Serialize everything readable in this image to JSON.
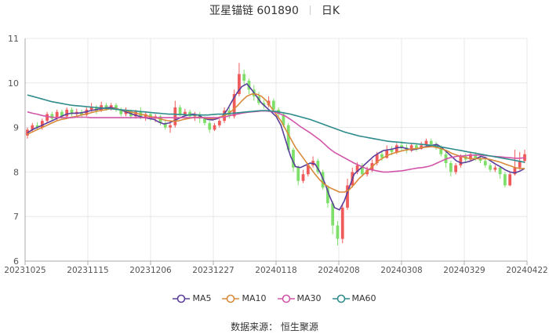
{
  "header": {
    "stock_name": "亚星锚链 601890",
    "period": "日K"
  },
  "source": "数据来源： 恒生聚源",
  "colors": {
    "up": "#f05a5a",
    "down": "#7ee06a",
    "MA5": "#5b3f9b",
    "MA10": "#d88a3a",
    "MA30": "#d255a8",
    "MA60": "#2f8c8c",
    "grid": "#e8e8e8",
    "axis": "#aaaaaa"
  },
  "chart_data": {
    "type": "candlestick",
    "title": "亚星锚链 601890 日K",
    "ylim": [
      6,
      11
    ],
    "yticks": [
      6,
      7,
      8,
      9,
      10,
      11
    ],
    "xticks": [
      "20231025",
      "20231115",
      "20231206",
      "20231227",
      "20240118",
      "20240208",
      "20240308",
      "20240329",
      "20240422"
    ],
    "legend_position": "bottom",
    "grid": true,
    "series": [
      {
        "name": "MA5",
        "values": [
          8.88,
          8.95,
          9.0,
          9.05,
          9.1,
          9.15,
          9.2,
          9.25,
          9.3,
          9.32,
          9.32,
          9.33,
          9.35,
          9.38,
          9.4,
          9.42,
          9.44,
          9.45,
          9.43,
          9.4,
          9.36,
          9.32,
          9.28,
          9.25,
          9.22,
          9.2,
          9.18,
          9.12,
          9.08,
          9.1,
          9.15,
          9.2,
          9.25,
          9.28,
          9.3,
          9.28,
          9.22,
          9.18,
          9.17,
          9.2,
          9.25,
          9.4,
          9.6,
          9.78,
          9.92,
          9.98,
          9.85,
          9.7,
          9.55,
          9.45,
          9.35,
          9.25,
          9.05,
          8.7,
          8.35,
          8.12,
          8.1,
          8.15,
          8.2,
          8.18,
          8.0,
          7.75,
          7.45,
          7.2,
          7.15,
          7.35,
          7.65,
          7.95,
          8.05,
          8.15,
          8.25,
          8.35,
          8.42,
          8.48,
          8.5,
          8.52,
          8.55,
          8.55,
          8.52,
          8.5,
          8.52,
          8.55,
          8.58,
          8.6,
          8.62,
          8.55,
          8.45,
          8.35,
          8.25,
          8.2,
          8.22,
          8.25,
          8.3,
          8.35,
          8.32,
          8.25,
          8.18,
          8.12,
          8.05,
          8.0,
          7.98,
          8.02,
          8.08
        ]
      },
      {
        "name": "MA10",
        "values": [
          8.85,
          8.9,
          8.95,
          9.0,
          9.05,
          9.1,
          9.15,
          9.18,
          9.2,
          9.23,
          9.25,
          9.28,
          9.3,
          9.33,
          9.36,
          9.38,
          9.4,
          9.42,
          9.42,
          9.4,
          9.38,
          9.35,
          9.33,
          9.3,
          9.28,
          9.25,
          9.23,
          9.2,
          9.17,
          9.15,
          9.14,
          9.15,
          9.18,
          9.2,
          9.22,
          9.23,
          9.22,
          9.2,
          9.2,
          9.22,
          9.25,
          9.3,
          9.38,
          9.48,
          9.6,
          9.7,
          9.75,
          9.75,
          9.7,
          9.6,
          9.45,
          9.3,
          9.15,
          8.95,
          8.75,
          8.55,
          8.4,
          8.25,
          8.1,
          7.95,
          7.82,
          7.72,
          7.65,
          7.6,
          7.55,
          7.55,
          7.6,
          7.72,
          7.85,
          7.95,
          8.05,
          8.15,
          8.25,
          8.32,
          8.38,
          8.42,
          8.45,
          8.48,
          8.5,
          8.52,
          8.53,
          8.55,
          8.56,
          8.57,
          8.55,
          8.52,
          8.48,
          8.42,
          8.38,
          8.35,
          8.32,
          8.3,
          8.3,
          8.3,
          8.3,
          8.28,
          8.25,
          8.22,
          8.18,
          8.14,
          8.1,
          8.08,
          8.08
        ]
      },
      {
        "name": "MA30",
        "values": [
          9.35,
          9.32,
          9.3,
          9.27,
          9.25,
          9.23,
          9.22,
          9.22,
          9.22,
          9.22,
          9.23,
          9.23,
          9.23,
          9.22,
          9.22,
          9.22,
          9.22,
          9.22,
          9.22,
          9.22,
          9.22,
          9.22,
          9.22,
          9.22,
          9.22,
          9.22,
          9.22,
          9.22,
          9.22,
          9.22,
          9.22,
          9.22,
          9.22,
          9.22,
          9.22,
          9.22,
          9.22,
          9.22,
          9.22,
          9.22,
          9.23,
          9.25,
          9.28,
          9.3,
          9.32,
          9.34,
          9.35,
          9.36,
          9.37,
          9.37,
          9.36,
          9.34,
          9.3,
          9.25,
          9.18,
          9.1,
          9.02,
          8.95,
          8.88,
          8.8,
          8.72,
          8.62,
          8.52,
          8.44,
          8.38,
          8.32,
          8.26,
          8.2,
          8.15,
          8.1,
          8.06,
          8.04,
          8.02,
          8.0,
          8.0,
          8.01,
          8.02,
          8.03,
          8.05,
          8.07,
          8.09,
          8.1,
          8.12,
          8.15,
          8.2,
          8.25,
          8.3,
          8.33,
          8.35,
          8.36,
          8.37,
          8.38,
          8.38,
          8.38,
          8.37,
          8.36,
          8.35,
          8.34,
          8.33,
          8.32,
          8.31,
          8.31,
          8.32
        ]
      },
      {
        "name": "MA60",
        "values": [
          9.73,
          9.7,
          9.67,
          9.64,
          9.61,
          9.58,
          9.56,
          9.54,
          9.52,
          9.5,
          9.49,
          9.48,
          9.47,
          9.46,
          9.45,
          9.44,
          9.43,
          9.42,
          9.41,
          9.4,
          9.39,
          9.38,
          9.37,
          9.36,
          9.35,
          9.34,
          9.33,
          9.32,
          9.31,
          9.3,
          9.3,
          9.29,
          9.29,
          9.28,
          9.28,
          9.28,
          9.28,
          9.28,
          9.29,
          9.3,
          9.3,
          9.31,
          9.32,
          9.33,
          9.34,
          9.35,
          9.36,
          9.37,
          9.38,
          9.38,
          9.37,
          9.36,
          9.34,
          9.32,
          9.3,
          9.27,
          9.24,
          9.21,
          9.18,
          9.14,
          9.1,
          9.06,
          9.02,
          8.98,
          8.94,
          8.9,
          8.87,
          8.84,
          8.81,
          8.79,
          8.77,
          8.75,
          8.73,
          8.71,
          8.69,
          8.68,
          8.67,
          8.66,
          8.65,
          8.64,
          8.63,
          8.62,
          8.61,
          8.6,
          8.58,
          8.56,
          8.54,
          8.52,
          8.5,
          8.48,
          8.46,
          8.44,
          8.42,
          8.4,
          8.38,
          8.36,
          8.34,
          8.32,
          8.3,
          8.28,
          8.26,
          8.24,
          8.22
        ]
      }
    ],
    "candles": [
      [
        8.82,
        8.95,
        9.0,
        8.75
      ],
      [
        8.95,
        9.05,
        9.1,
        8.9
      ],
      [
        9.05,
        9.0,
        9.12,
        8.95
      ],
      [
        9.0,
        9.15,
        9.2,
        8.95
      ],
      [
        9.15,
        9.3,
        9.35,
        9.1
      ],
      [
        9.3,
        9.2,
        9.35,
        9.15
      ],
      [
        9.2,
        9.35,
        9.4,
        9.15
      ],
      [
        9.35,
        9.25,
        9.4,
        9.2
      ],
      [
        9.25,
        9.4,
        9.45,
        9.2
      ],
      [
        9.4,
        9.3,
        9.45,
        9.25
      ],
      [
        9.3,
        9.35,
        9.42,
        9.25
      ],
      [
        9.35,
        9.28,
        9.4,
        9.22
      ],
      [
        9.28,
        9.4,
        9.45,
        9.25
      ],
      [
        9.4,
        9.45,
        9.55,
        9.35
      ],
      [
        9.45,
        9.38,
        9.5,
        9.3
      ],
      [
        9.38,
        9.5,
        9.58,
        9.35
      ],
      [
        9.5,
        9.42,
        9.55,
        9.38
      ],
      [
        9.42,
        9.5,
        9.55,
        9.38
      ],
      [
        9.5,
        9.4,
        9.55,
        9.35
      ],
      [
        9.4,
        9.3,
        9.45,
        9.25
      ],
      [
        9.3,
        9.38,
        9.45,
        9.25
      ],
      [
        9.38,
        9.25,
        9.4,
        9.2
      ],
      [
        9.25,
        9.35,
        9.4,
        9.2
      ],
      [
        9.35,
        9.22,
        9.45,
        9.18
      ],
      [
        9.22,
        9.3,
        9.35,
        9.15
      ],
      [
        9.3,
        9.2,
        9.35,
        9.15
      ],
      [
        9.2,
        9.25,
        9.3,
        9.12
      ],
      [
        9.25,
        9.1,
        9.28,
        9.05
      ],
      [
        9.1,
        9.0,
        9.15,
        8.95
      ],
      [
        9.0,
        9.05,
        9.1,
        8.88
      ],
      [
        9.05,
        9.45,
        9.6,
        9.0
      ],
      [
        9.45,
        9.3,
        9.5,
        9.25
      ],
      [
        9.3,
        9.35,
        9.42,
        9.25
      ],
      [
        9.35,
        9.25,
        9.4,
        9.2
      ],
      [
        9.25,
        9.3,
        9.35,
        9.15
      ],
      [
        9.3,
        9.2,
        9.35,
        9.1
      ],
      [
        9.2,
        9.1,
        9.25,
        9.05
      ],
      [
        9.1,
        8.95,
        9.15,
        8.88
      ],
      [
        8.95,
        9.05,
        9.1,
        8.92
      ],
      [
        9.05,
        9.15,
        9.2,
        9.0
      ],
      [
        9.15,
        9.38,
        9.45,
        9.1
      ],
      [
        9.38,
        9.25,
        9.45,
        9.2
      ],
      [
        9.25,
        9.75,
        9.85,
        9.2
      ],
      [
        9.75,
        10.2,
        10.45,
        9.7
      ],
      [
        10.2,
        10.05,
        10.3,
        9.95
      ],
      [
        10.05,
        9.85,
        10.1,
        9.75
      ],
      [
        9.85,
        9.7,
        9.95,
        9.6
      ],
      [
        9.7,
        9.55,
        9.8,
        9.5
      ],
      [
        9.55,
        9.5,
        9.62,
        9.42
      ],
      [
        9.5,
        9.6,
        9.7,
        9.45
      ],
      [
        9.6,
        9.4,
        9.65,
        9.35
      ],
      [
        9.4,
        9.3,
        9.45,
        9.2
      ],
      [
        9.3,
        9.05,
        9.35,
        9.0
      ],
      [
        9.05,
        8.5,
        9.1,
        8.45
      ],
      [
        8.5,
        8.1,
        8.55,
        8.0
      ],
      [
        8.1,
        7.8,
        8.15,
        7.7
      ],
      [
        7.8,
        7.95,
        8.05,
        7.75
      ],
      [
        7.95,
        8.15,
        8.2,
        7.9
      ],
      [
        8.15,
        8.25,
        8.35,
        8.1
      ],
      [
        8.25,
        8.0,
        8.3,
        7.95
      ],
      [
        8.0,
        7.65,
        8.05,
        7.6
      ],
      [
        7.65,
        7.3,
        7.7,
        7.2
      ],
      [
        7.3,
        6.8,
        7.35,
        6.6
      ],
      [
        6.8,
        6.5,
        6.9,
        6.35
      ],
      [
        6.5,
        7.2,
        7.3,
        6.4
      ],
      [
        7.2,
        7.7,
        7.85,
        7.15
      ],
      [
        7.7,
        8.0,
        8.1,
        7.65
      ],
      [
        8.0,
        8.15,
        8.22,
        7.95
      ],
      [
        8.15,
        7.95,
        8.2,
        7.9
      ],
      [
        7.95,
        8.05,
        8.12,
        7.9
      ],
      [
        8.05,
        8.2,
        8.28,
        8.0
      ],
      [
        8.2,
        8.4,
        8.45,
        8.15
      ],
      [
        8.4,
        8.32,
        8.48,
        8.25
      ],
      [
        8.32,
        8.5,
        8.6,
        8.3
      ],
      [
        8.5,
        8.45,
        8.58,
        8.38
      ],
      [
        8.45,
        8.6,
        8.65,
        8.4
      ],
      [
        8.6,
        8.55,
        8.7,
        8.48
      ],
      [
        8.55,
        8.48,
        8.62,
        8.42
      ],
      [
        8.48,
        8.6,
        8.65,
        8.45
      ],
      [
        8.6,
        8.52,
        8.65,
        8.46
      ],
      [
        8.52,
        8.6,
        8.68,
        8.5
      ],
      [
        8.6,
        8.7,
        8.75,
        8.55
      ],
      [
        8.7,
        8.62,
        8.75,
        8.55
      ],
      [
        8.62,
        8.55,
        8.68,
        8.5
      ],
      [
        8.55,
        8.4,
        8.6,
        8.35
      ],
      [
        8.4,
        8.2,
        8.45,
        8.1
      ],
      [
        8.2,
        8.0,
        8.25,
        7.9
      ],
      [
        8.0,
        8.15,
        8.2,
        7.95
      ],
      [
        8.15,
        8.35,
        8.4,
        8.1
      ],
      [
        8.35,
        8.28,
        8.42,
        8.2
      ],
      [
        8.28,
        8.4,
        8.45,
        8.25
      ],
      [
        8.4,
        8.3,
        8.45,
        8.25
      ],
      [
        8.3,
        8.25,
        8.38,
        8.2
      ],
      [
        8.25,
        8.15,
        8.3,
        8.1
      ],
      [
        8.15,
        8.05,
        8.2,
        8.0
      ],
      [
        8.05,
        8.1,
        8.15,
        8.0
      ],
      [
        8.1,
        7.95,
        8.12,
        7.85
      ],
      [
        7.95,
        7.7,
        8.0,
        7.65
      ],
      [
        7.7,
        7.95,
        8.0,
        7.68
      ],
      [
        7.95,
        8.1,
        8.5,
        7.92
      ],
      [
        8.1,
        8.25,
        8.45,
        8.05
      ],
      [
        8.25,
        8.4,
        8.5,
        8.2
      ]
    ]
  }
}
